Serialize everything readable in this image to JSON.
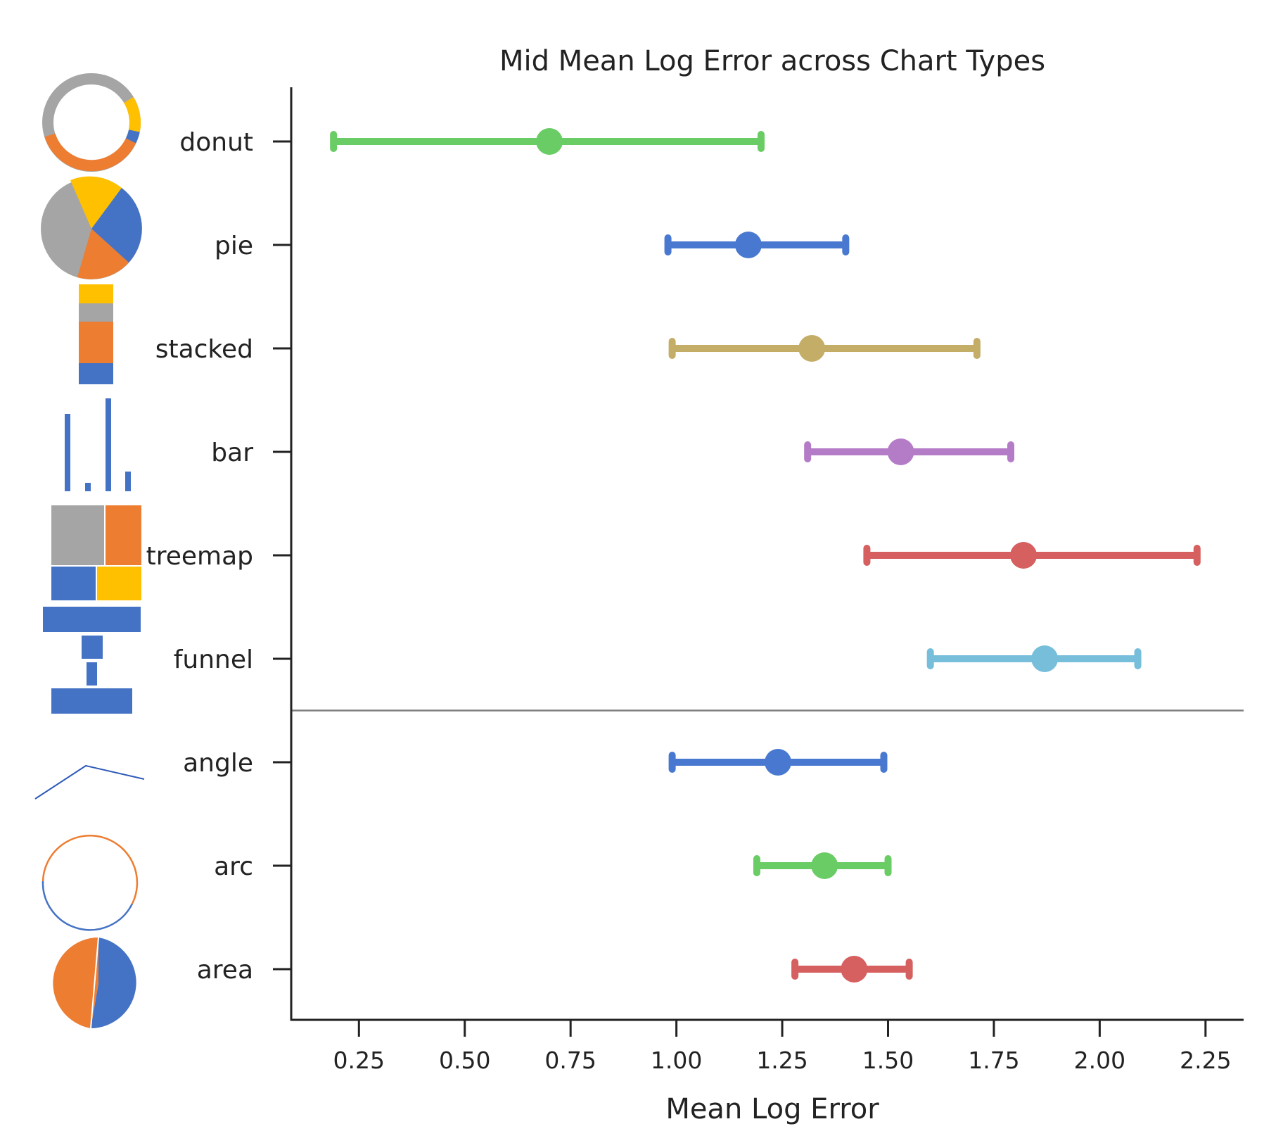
{
  "chart_data": {
    "type": "scatter",
    "title": "Mid Mean Log Error across Chart Types",
    "xlabel": "Mean Log Error",
    "ylabel": "",
    "xlim": [
      0.09,
      2.34
    ],
    "xticks": [
      "0.25",
      "0.50",
      "0.75",
      "1.00",
      "1.25",
      "1.50",
      "1.75",
      "2.00",
      "2.25"
    ],
    "grid": false,
    "legend": "none",
    "separator_after_index": 5,
    "categories": [
      "donut",
      "pie",
      "stacked",
      "bar",
      "treemap",
      "funnel",
      "angle",
      "arc",
      "area"
    ],
    "points": [
      {
        "label": "donut",
        "mean": 0.7,
        "low": 0.19,
        "high": 1.2,
        "color": "#6acc64"
      },
      {
        "label": "pie",
        "mean": 1.17,
        "low": 0.98,
        "high": 1.4,
        "color": "#4878d0"
      },
      {
        "label": "stacked",
        "mean": 1.32,
        "low": 0.99,
        "high": 1.71,
        "color": "#c4ad66"
      },
      {
        "label": "bar",
        "mean": 1.53,
        "low": 1.31,
        "high": 1.79,
        "color": "#b47cc7"
      },
      {
        "label": "treemap",
        "mean": 1.82,
        "low": 1.45,
        "high": 2.23,
        "color": "#d65f5f"
      },
      {
        "label": "funnel",
        "mean": 1.87,
        "low": 1.6,
        "high": 2.09,
        "color": "#77bedb"
      },
      {
        "label": "angle",
        "mean": 1.24,
        "low": 0.99,
        "high": 1.49,
        "color": "#4878d0"
      },
      {
        "label": "arc",
        "mean": 1.35,
        "low": 1.19,
        "high": 1.5,
        "color": "#6acc64"
      },
      {
        "label": "area",
        "mean": 1.42,
        "low": 1.28,
        "high": 1.55,
        "color": "#d65f5f"
      }
    ],
    "icon_colors": {
      "blue": "#4472c4",
      "orange": "#ed7d31",
      "gray": "#a5a5a5",
      "yellow": "#ffc000"
    }
  }
}
